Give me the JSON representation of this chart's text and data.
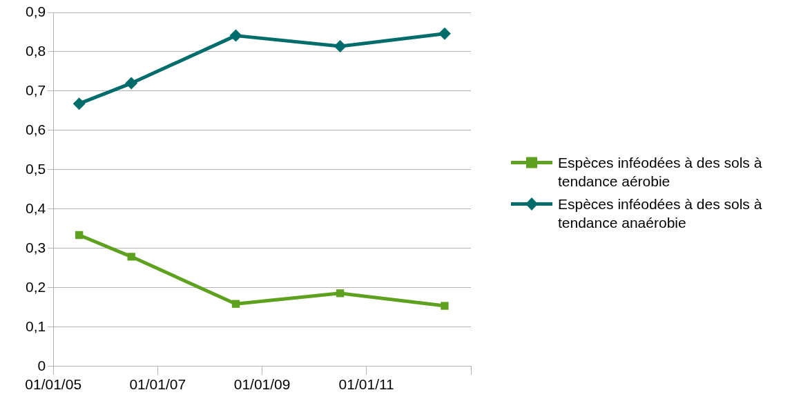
{
  "chart_data": {
    "type": "line",
    "x": [
      "2005-07-01",
      "2006-07-01",
      "2008-07-01",
      "2010-07-01",
      "2012-07-01"
    ],
    "series": [
      {
        "name": "Espèces inféodées à des sols à tendance aérobie",
        "color": "#5ea11f",
        "marker": "square",
        "values": [
          0.334,
          0.279,
          0.159,
          0.186,
          0.154
        ]
      },
      {
        "name": "Espèces inféodées à des sols à tendance anaérobie",
        "color": "#006c6c",
        "marker": "diamond",
        "values": [
          0.668,
          0.72,
          0.841,
          0.814,
          0.846
        ]
      }
    ],
    "xlim": [
      "2005-01-01",
      "2013-01-01"
    ],
    "xticks": [
      {
        "value": "2005-01-01",
        "label": "01/01/05"
      },
      {
        "value": "2007-01-01",
        "label": "01/01/07"
      },
      {
        "value": "2009-01-01",
        "label": "01/01/09"
      },
      {
        "value": "2011-01-01",
        "label": "01/01/11"
      },
      {
        "value": "2013-01-01",
        "label": null
      }
    ],
    "ylim": [
      0,
      0.9
    ],
    "yticks": [
      {
        "value": 0,
        "label": "0"
      },
      {
        "value": 0.1,
        "label": "0,1"
      },
      {
        "value": 0.2,
        "label": "0,2"
      },
      {
        "value": 0.3,
        "label": "0,3"
      },
      {
        "value": 0.4,
        "label": "0,4"
      },
      {
        "value": 0.5,
        "label": "0,5"
      },
      {
        "value": 0.6,
        "label": "0,6"
      },
      {
        "value": 0.7,
        "label": "0,7"
      },
      {
        "value": 0.8,
        "label": "0,8"
      },
      {
        "value": 0.9,
        "label": "0,9"
      }
    ],
    "grid": "y",
    "legend": "right",
    "line_style": "solid"
  }
}
